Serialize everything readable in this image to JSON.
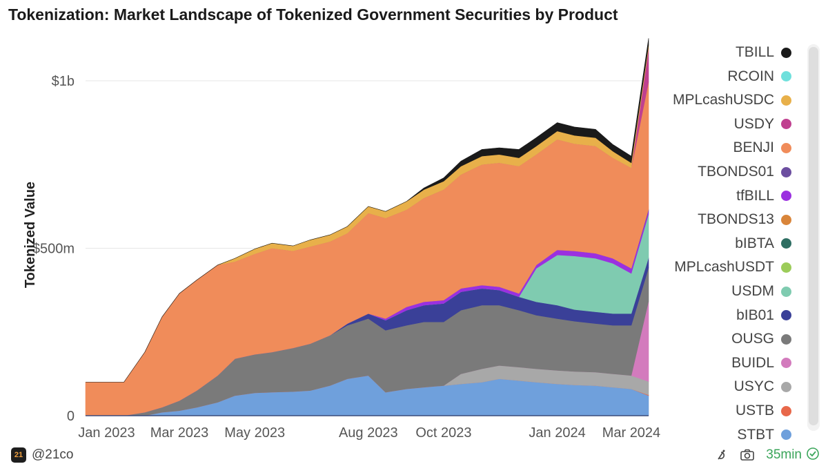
{
  "header": {
    "title": "Tokenization: Market Landscape of Tokenized Government Securities by Product"
  },
  "chart_data": {
    "type": "area",
    "title": "Tokenization: Market Landscape of Tokenized Government Securities by Product",
    "xlabel": "",
    "ylabel": "Tokenized Value",
    "y_tick_labels": [
      "0",
      "$500m",
      "$1b"
    ],
    "y_ticks": [
      0,
      500,
      1000
    ],
    "ylim": [
      0,
      1150
    ],
    "y_unit": "USD millions",
    "x_tick_labels": [
      "Jan 2023",
      "Mar 2023",
      "May 2023",
      "Aug 2023",
      "Oct 2023",
      "Jan 2024",
      "Mar 2024"
    ],
    "x_tick_dates": [
      "2023-01-01",
      "2023-03-01",
      "2023-05-01",
      "2023-08-01",
      "2023-10-01",
      "2024-01-01",
      "2024-03-01"
    ],
    "x": [
      "2022-12-15",
      "2023-01-15",
      "2023-02-01",
      "2023-02-15",
      "2023-03-01",
      "2023-03-15",
      "2023-04-01",
      "2023-04-15",
      "2023-05-01",
      "2023-05-15",
      "2023-06-01",
      "2023-06-15",
      "2023-07-01",
      "2023-07-15",
      "2023-08-01",
      "2023-08-15",
      "2023-09-01",
      "2023-09-15",
      "2023-10-01",
      "2023-10-15",
      "2023-11-01",
      "2023-11-15",
      "2023-12-01",
      "2023-12-15",
      "2024-01-01",
      "2024-01-15",
      "2024-02-01",
      "2024-02-15",
      "2024-03-01",
      "2024-03-15"
    ],
    "grid": true,
    "legend_position": "right",
    "series": [
      {
        "name": "STBT",
        "color": "#6fa0dc",
        "values": [
          0,
          0,
          0,
          10,
          15,
          25,
          40,
          60,
          68,
          70,
          72,
          75,
          90,
          110,
          120,
          70,
          80,
          85,
          90,
          95,
          100,
          110,
          105,
          100,
          95,
          92,
          90,
          85,
          80,
          60
        ]
      },
      {
        "name": "USTB",
        "color": "#e8684a",
        "values": [
          0,
          0,
          0,
          0,
          0,
          0,
          0,
          0,
          0,
          0,
          0,
          0,
          0,
          0,
          0,
          0,
          0,
          0,
          0,
          0,
          0,
          0,
          0,
          0,
          0,
          0,
          0,
          0,
          0,
          2
        ]
      },
      {
        "name": "USYC",
        "color": "#a8a8a8",
        "values": [
          0,
          0,
          0,
          0,
          0,
          0,
          0,
          0,
          0,
          0,
          0,
          0,
          0,
          0,
          0,
          0,
          0,
          0,
          0,
          30,
          40,
          40,
          40,
          40,
          40,
          40,
          40,
          40,
          40,
          40
        ]
      },
      {
        "name": "BUIDL",
        "color": "#d37bbd",
        "values": [
          0,
          0,
          0,
          0,
          0,
          0,
          0,
          0,
          0,
          0,
          0,
          0,
          0,
          0,
          0,
          0,
          0,
          0,
          0,
          0,
          0,
          0,
          0,
          0,
          0,
          0,
          0,
          0,
          0,
          240
        ]
      },
      {
        "name": "OUSG",
        "color": "#7a7a7a",
        "values": [
          0,
          0,
          10,
          15,
          30,
          50,
          80,
          110,
          115,
          120,
          130,
          140,
          150,
          160,
          170,
          185,
          190,
          195,
          190,
          190,
          190,
          180,
          170,
          160,
          155,
          150,
          145,
          145,
          150,
          100
        ]
      },
      {
        "name": "bIB01",
        "color": "#3a4098",
        "values": [
          0,
          0,
          0,
          0,
          0,
          0,
          0,
          0,
          0,
          0,
          0,
          0,
          0,
          5,
          15,
          30,
          45,
          50,
          55,
          55,
          50,
          45,
          40,
          40,
          40,
          35,
          35,
          35,
          35,
          30
        ]
      },
      {
        "name": "USDM",
        "color": "#7fcbb0",
        "values": [
          0,
          0,
          0,
          0,
          0,
          0,
          0,
          0,
          0,
          0,
          0,
          0,
          0,
          0,
          0,
          0,
          0,
          0,
          0,
          0,
          0,
          0,
          0,
          100,
          150,
          160,
          160,
          150,
          120,
          130
        ]
      },
      {
        "name": "MPLcashUSDT",
        "color": "#9ccc5a",
        "values": [
          0,
          0,
          0,
          0,
          0,
          0,
          0,
          0,
          0,
          0,
          0,
          0,
          0,
          0,
          0,
          0,
          0,
          0,
          0,
          0,
          0,
          0,
          0,
          0,
          0,
          0,
          0,
          0,
          0,
          0
        ]
      },
      {
        "name": "bIBTA",
        "color": "#2e6e62",
        "values": [
          0,
          0,
          0,
          0,
          0,
          0,
          0,
          0,
          0,
          0,
          0,
          0,
          0,
          0,
          0,
          0,
          0,
          0,
          0,
          0,
          0,
          0,
          0,
          0,
          0,
          0,
          0,
          0,
          0,
          0
        ]
      },
      {
        "name": "TBONDS13",
        "color": "#d9853a",
        "values": [
          0,
          0,
          0,
          0,
          0,
          0,
          0,
          0,
          0,
          0,
          0,
          0,
          0,
          0,
          0,
          0,
          0,
          0,
          0,
          0,
          0,
          0,
          0,
          0,
          0,
          0,
          0,
          0,
          0,
          0
        ]
      },
      {
        "name": "tfBILL",
        "color": "#9b30e0",
        "values": [
          0,
          0,
          0,
          0,
          0,
          0,
          0,
          0,
          0,
          0,
          0,
          0,
          0,
          0,
          0,
          5,
          10,
          10,
          10,
          10,
          10,
          10,
          10,
          10,
          15,
          15,
          15,
          15,
          15,
          10
        ]
      },
      {
        "name": "TBONDS01",
        "color": "#6c4ea0",
        "values": [
          0,
          0,
          0,
          0,
          0,
          0,
          0,
          0,
          0,
          0,
          0,
          0,
          0,
          0,
          0,
          0,
          0,
          0,
          0,
          0,
          0,
          0,
          0,
          0,
          0,
          0,
          0,
          0,
          0,
          5
        ]
      },
      {
        "name": "BENJI",
        "color": "#f08c5a",
        "values": [
          100,
          100,
          180,
          270,
          320,
          330,
          330,
          290,
          300,
          310,
          290,
          290,
          280,
          270,
          300,
          300,
          290,
          310,
          330,
          340,
          360,
          370,
          380,
          330,
          330,
          320,
          320,
          300,
          300,
          380
        ]
      },
      {
        "name": "USDY",
        "color": "#c04090",
        "values": [
          0,
          0,
          0,
          0,
          0,
          0,
          0,
          0,
          0,
          0,
          0,
          0,
          0,
          0,
          0,
          0,
          0,
          0,
          0,
          0,
          0,
          0,
          0,
          0,
          0,
          0,
          0,
          0,
          0,
          100
        ]
      },
      {
        "name": "MPLcashUSDC",
        "color": "#e8b04a",
        "values": [
          0,
          0,
          0,
          0,
          0,
          0,
          0,
          10,
          15,
          15,
          15,
          20,
          20,
          20,
          20,
          20,
          25,
          25,
          25,
          25,
          25,
          25,
          25,
          25,
          25,
          25,
          25,
          20,
          15,
          10
        ]
      },
      {
        "name": "RCOIN",
        "color": "#6fe0dc",
        "values": [
          0,
          0,
          0,
          0,
          0,
          0,
          0,
          0,
          0,
          0,
          0,
          0,
          0,
          0,
          0,
          0,
          0,
          0,
          0,
          0,
          0,
          0,
          0,
          0,
          0,
          0,
          0,
          0,
          0,
          0
        ]
      },
      {
        "name": "TBILL",
        "color": "#1a1a1a",
        "values": [
          0,
          0,
          0,
          0,
          0,
          0,
          0,
          0,
          0,
          0,
          0,
          0,
          0,
          0,
          0,
          0,
          0,
          5,
          10,
          15,
          20,
          20,
          25,
          25,
          25,
          25,
          25,
          20,
          20,
          20
        ]
      }
    ]
  },
  "legend": {
    "items": [
      {
        "label": "TBILL",
        "color": "#1a1a1a"
      },
      {
        "label": "RCOIN",
        "color": "#6fe0dc"
      },
      {
        "label": "MPLcashUSDC",
        "color": "#e8b04a"
      },
      {
        "label": "USDY",
        "color": "#c04090"
      },
      {
        "label": "BENJI",
        "color": "#f08c5a"
      },
      {
        "label": "TBONDS01",
        "color": "#6c4ea0"
      },
      {
        "label": "tfBILL",
        "color": "#9b30e0"
      },
      {
        "label": "TBONDS13",
        "color": "#d9853a"
      },
      {
        "label": "bIBTA",
        "color": "#2e6e62"
      },
      {
        "label": "MPLcashUSDT",
        "color": "#9ccc5a"
      },
      {
        "label": "USDM",
        "color": "#7fcbb0"
      },
      {
        "label": "bIB01",
        "color": "#3a4098"
      },
      {
        "label": "OUSG",
        "color": "#7a7a7a"
      },
      {
        "label": "BUIDL",
        "color": "#d37bbd"
      },
      {
        "label": "USYC",
        "color": "#a8a8a8"
      },
      {
        "label": "USTB",
        "color": "#e8684a"
      },
      {
        "label": "STBT",
        "color": "#6fa0dc"
      }
    ]
  },
  "footer": {
    "brand_logo_text": "21",
    "brand_handle": "@21co",
    "refresh_label": "35min",
    "icons": [
      "bug-icon",
      "camera-icon",
      "check-circle-icon"
    ]
  }
}
